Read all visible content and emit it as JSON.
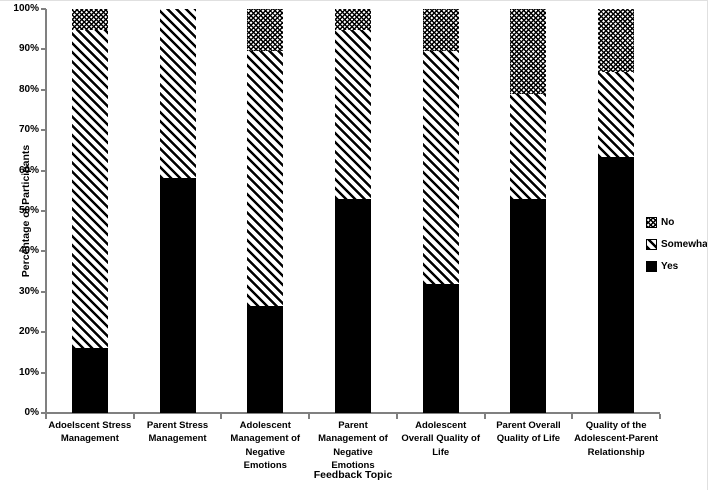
{
  "chart_data": {
    "type": "bar",
    "subtype": "stacked-100",
    "title": "",
    "xlabel": "Feedback Topic",
    "ylabel": "Percentage of Participants",
    "ylim": [
      0,
      100
    ],
    "ytick_step": 10,
    "yticks": [
      "0%",
      "10%",
      "20%",
      "30%",
      "40%",
      "50%",
      "60%",
      "70%",
      "80%",
      "90%",
      "100%"
    ],
    "grid": false,
    "categories": [
      "Adoelscent Stress\nManagement",
      "Parent Stress\nManagement",
      "Adolescent\nManagement of\nNegative\nEmotions",
      "Parent\nManagement of\nNegative\nEmotions",
      "Adolescent\nOverall Quality of\nLife",
      "Parent Overall\nQuality of Life",
      "Quality of the\nAdolescent-Parent\nRelationship"
    ],
    "series": [
      {
        "name": "Yes",
        "pattern": "solid",
        "color": "#000000",
        "values": [
          15.8,
          57.9,
          26.3,
          52.6,
          31.6,
          52.6,
          63.2
        ]
      },
      {
        "name": "Somewhat",
        "pattern": "diagonal-hatch",
        "color": "#000000",
        "values": [
          78.9,
          42.1,
          63.2,
          42.1,
          57.9,
          26.3,
          21.1
        ]
      },
      {
        "name": "No",
        "pattern": "crosshatch",
        "color": "#000000",
        "values": [
          5.3,
          0.0,
          10.5,
          5.3,
          10.5,
          21.1,
          15.8
        ]
      }
    ],
    "legend": {
      "position": "right",
      "entries": [
        {
          "label": "No",
          "pattern": "crosshatch"
        },
        {
          "label": "Somewhat",
          "pattern": "diagonal-hatch"
        },
        {
          "label": "Yes",
          "pattern": "solid"
        }
      ]
    }
  },
  "colors": {
    "bar": "#000000",
    "axis": "#808080",
    "background": "#ffffff",
    "text": "#000000"
  }
}
